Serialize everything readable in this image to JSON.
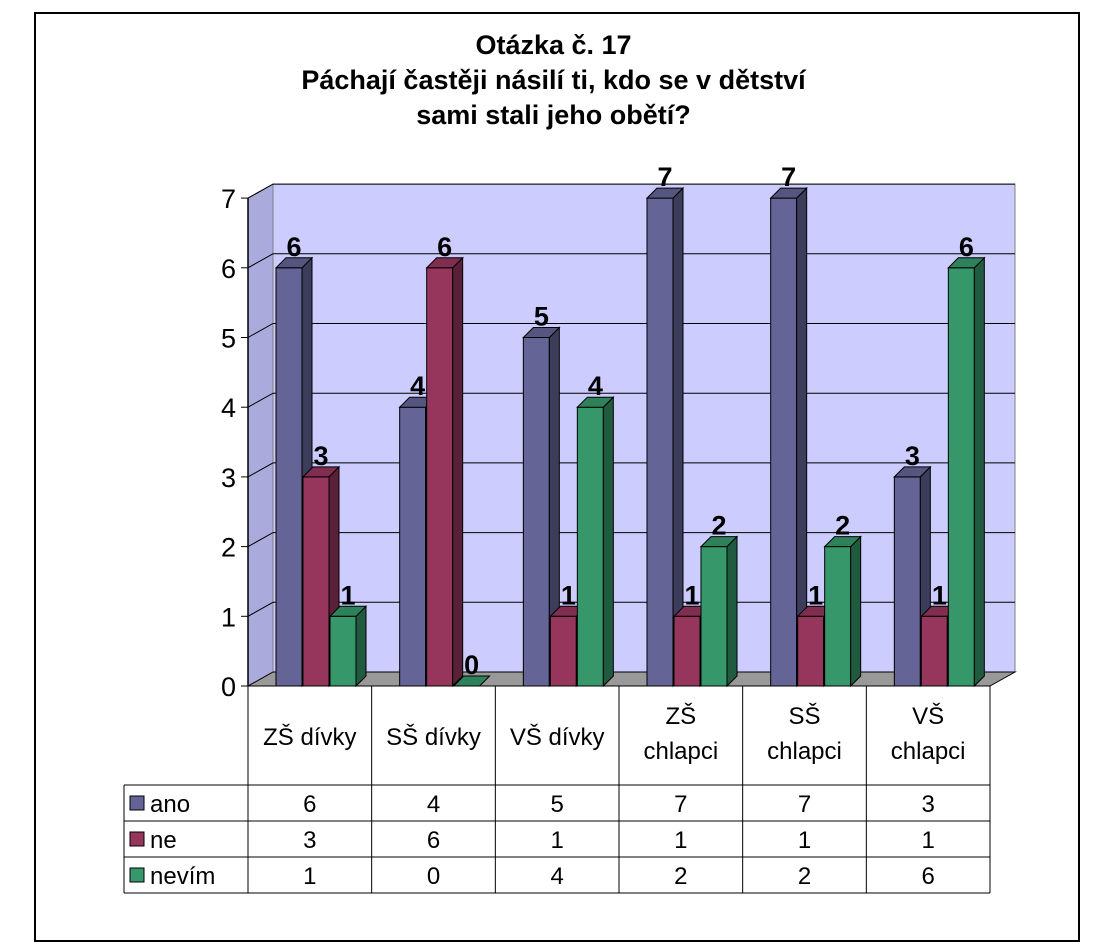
{
  "chart_data": {
    "type": "bar",
    "title_lines": [
      "Otázka č. 17",
      "Páchají častěji násilí ti, kdo se v dětství",
      "sami stali jeho obětí?"
    ],
    "categories": [
      [
        "ZŠ dívky"
      ],
      [
        "SŠ dívky"
      ],
      [
        "VŠ dívky"
      ],
      [
        "ZŠ",
        "chlapci"
      ],
      [
        "SŠ",
        "chlapci"
      ],
      [
        "VŠ",
        "chlapci"
      ]
    ],
    "series": [
      {
        "name": "ano",
        "values": [
          6,
          4,
          5,
          7,
          7,
          3
        ],
        "color": "#646497"
      },
      {
        "name": "ne",
        "values": [
          3,
          6,
          1,
          1,
          1,
          1
        ],
        "color": "#96365d"
      },
      {
        "name": "nevím",
        "values": [
          1,
          0,
          4,
          2,
          2,
          6
        ],
        "color": "#36986a"
      }
    ],
    "ylim": [
      0,
      7
    ],
    "yticks": [
      0,
      1,
      2,
      3,
      4,
      5,
      6,
      7
    ],
    "grid": true,
    "wall_color": "#ccccff",
    "floor_color": "#999999",
    "data_table": true,
    "legend_placement": "data-table-left"
  }
}
